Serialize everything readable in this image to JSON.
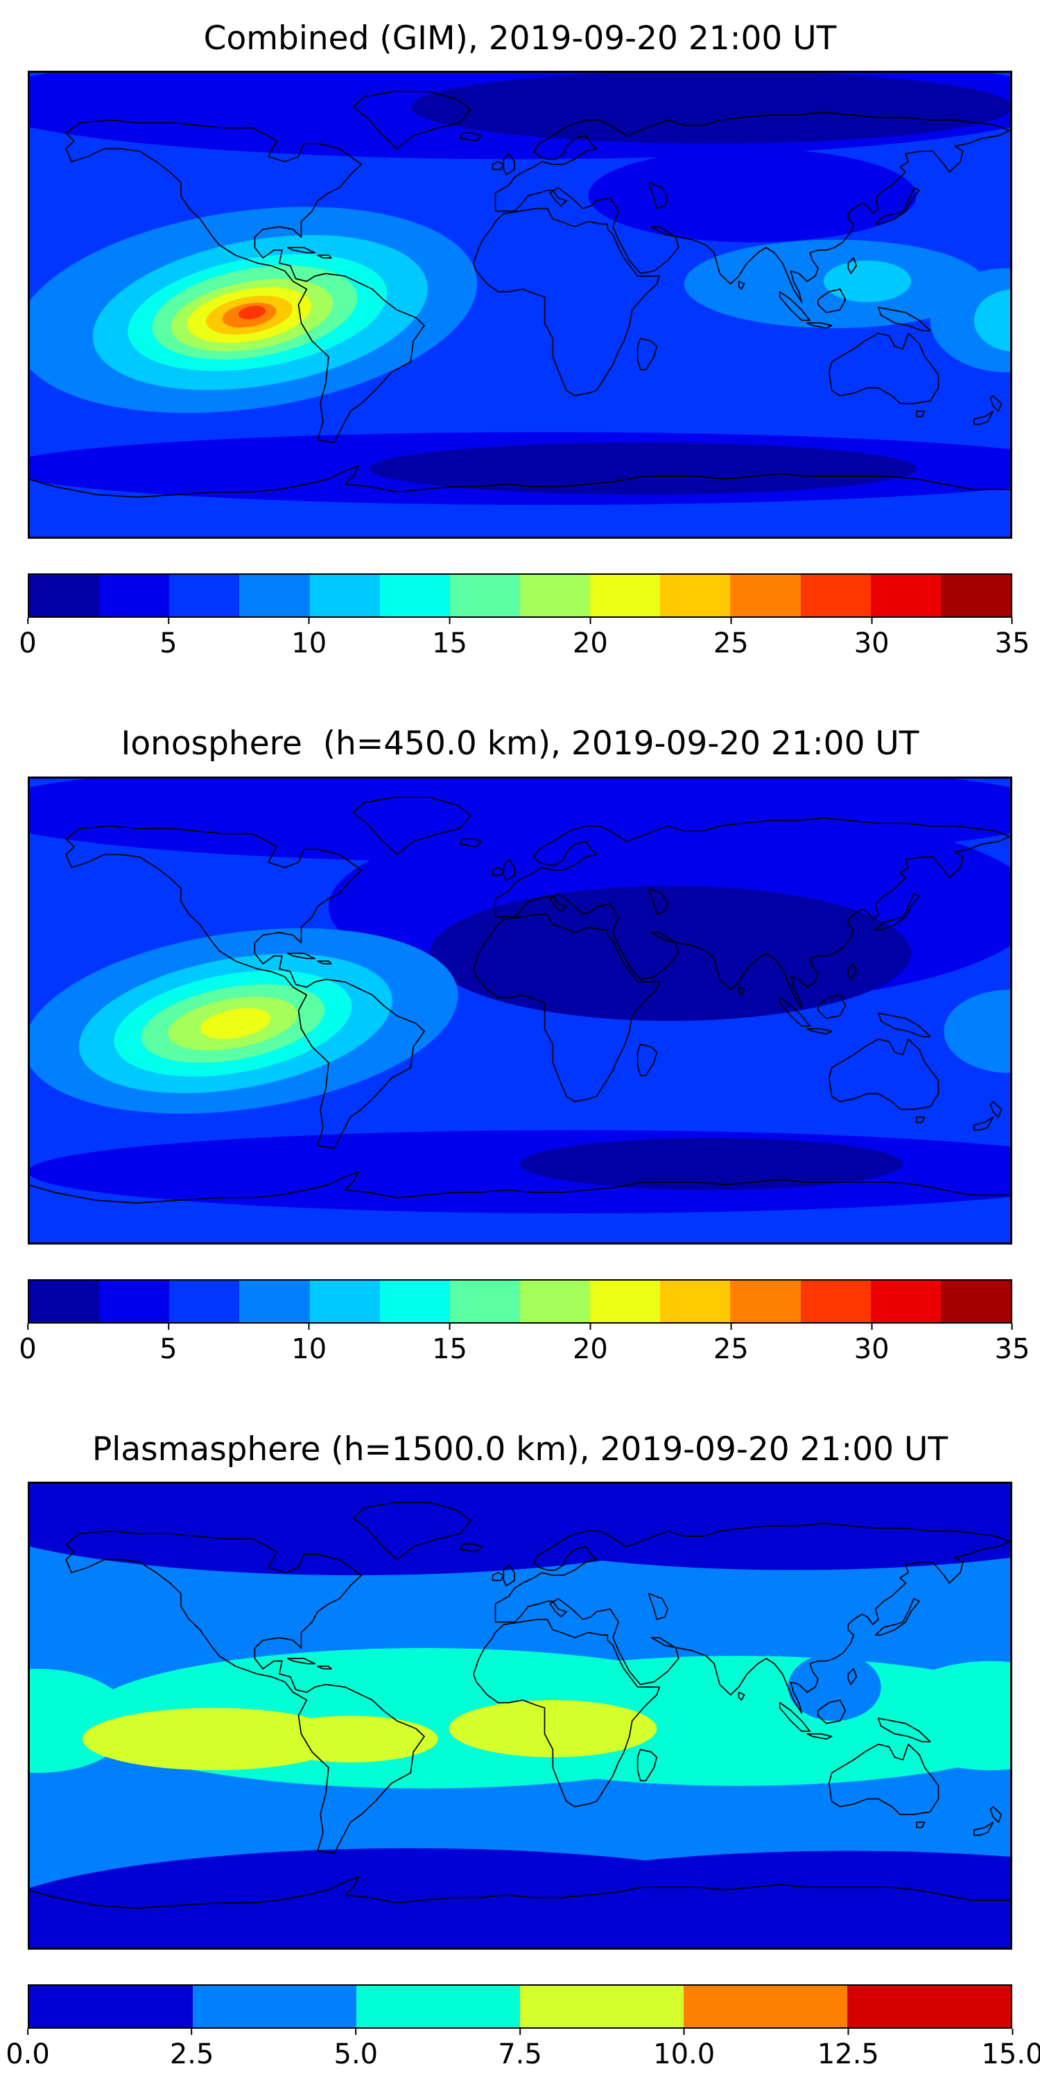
{
  "figure": {
    "panels": [
      {
        "id": "combined-gim",
        "title": "Combined (GIM), 2019-09-20 21:00 UT",
        "colorbar": {
          "min": 0,
          "max": 35,
          "tick_labels": [
            "0",
            "5",
            "10",
            "15",
            "20",
            "25",
            "30",
            "35"
          ],
          "colors": [
            "#0000a4",
            "#0000ed",
            "#0036ff",
            "#0080ff",
            "#00c9ff",
            "#00ffed",
            "#5bffa4",
            "#a4ff5b",
            "#edff12",
            "#ffc900",
            "#ff8000",
            "#ff3600",
            "#ed0000",
            "#a40000"
          ]
        }
      },
      {
        "id": "ionosphere",
        "title": "Ionosphere  (h=450.0 km), 2019-09-20 21:00 UT",
        "colorbar": {
          "min": 0,
          "max": 35,
          "tick_labels": [
            "0",
            "5",
            "10",
            "15",
            "20",
            "25",
            "30",
            "35"
          ],
          "colors": [
            "#0000a4",
            "#0000ed",
            "#0036ff",
            "#0080ff",
            "#00c9ff",
            "#00ffed",
            "#5bffa4",
            "#a4ff5b",
            "#edff12",
            "#ffc900",
            "#ff8000",
            "#ff3600",
            "#ed0000",
            "#a40000"
          ]
        }
      },
      {
        "id": "plasmasphere",
        "title": "Plasmasphere (h=1500.0 km), 2019-09-20 21:00 UT",
        "colorbar": {
          "min": 0,
          "max": 15,
          "tick_labels": [
            "0.0",
            "2.5",
            "5.0",
            "7.5",
            "10.0",
            "12.5",
            "15.0"
          ],
          "colors": [
            "#0000d4",
            "#0080ff",
            "#00ffd4",
            "#d4ff2b",
            "#ff8000",
            "#d40000"
          ]
        }
      }
    ]
  },
  "chart_data": [
    {
      "type": "heatmap",
      "title": "Combined (GIM), 2019-09-20 21:00 UT",
      "x_axis": "longitude_deg",
      "x_range": [
        -180,
        180
      ],
      "y_axis": "latitude_deg",
      "y_range": [
        -90,
        90
      ],
      "projection": "equirectangular world map with coastlines",
      "colormap": "jet",
      "value_range": [
        0,
        35
      ],
      "contour_interval": 2.5,
      "colorbar_tick_values": [
        0,
        5,
        10,
        15,
        20,
        25,
        30,
        35
      ],
      "background_value": 6,
      "max_feature": {
        "label": "equatorial anomaly peak over eastern Pacific west of South America",
        "lon": -98,
        "lat": -3,
        "value": 29
      },
      "min_feature": {
        "label": "high-latitude minimum over Arctic / northern Asia",
        "lon": 70,
        "lat": 76,
        "value": 2
      },
      "blob_format": "[lon_deg, lat_deg, rx_deg, ry_deg, value, rotation_deg?]",
      "field_blobs": [
        [
          0,
          78,
          200,
          22,
          4
        ],
        [
          70,
          76,
          110,
          14,
          1
        ],
        [
          85,
          42,
          60,
          18,
          4
        ],
        [
          10,
          -63,
          200,
          14,
          4
        ],
        [
          45,
          -63,
          100,
          10,
          1
        ],
        [
          -100,
          -2,
          85,
          38,
          8.7,
          -8
        ],
        [
          -95,
          -3,
          62,
          28,
          11,
          -10
        ],
        [
          -96,
          -3,
          48,
          21,
          13.5,
          -10
        ],
        [
          -97,
          -3,
          38,
          17,
          16,
          -10
        ],
        [
          -98,
          -4,
          30,
          13,
          18.5,
          -10
        ],
        [
          -99,
          -4,
          23,
          10,
          21,
          -10
        ],
        [
          -99,
          -4,
          16,
          7,
          23.5,
          -10
        ],
        [
          -99,
          -4,
          10,
          4.5,
          26,
          -10
        ],
        [
          -98,
          -3,
          5,
          2.5,
          28.5,
          -10
        ],
        [
          115,
          8,
          55,
          17,
          8.7
        ],
        [
          127,
          9,
          16,
          8,
          11
        ],
        [
          178,
          -6,
          28,
          20,
          8.7
        ],
        [
          181,
          -6,
          15,
          12,
          11
        ]
      ]
    },
    {
      "type": "heatmap",
      "title": "Ionosphere  (h=450.0 km), 2019-09-20 21:00 UT",
      "x_axis": "longitude_deg",
      "x_range": [
        -180,
        180
      ],
      "y_axis": "latitude_deg",
      "y_range": [
        -90,
        90
      ],
      "projection": "equirectangular world map with coastlines",
      "colormap": "jet",
      "value_range": [
        0,
        35
      ],
      "contour_interval": 2.5,
      "colorbar_tick_values": [
        0,
        5,
        10,
        15,
        20,
        25,
        30,
        35
      ],
      "background_value": 6,
      "max_feature": {
        "label": "equatorial anomaly peak over eastern Pacific west of South America",
        "lon": -104,
        "lat": -5,
        "value": 21
      },
      "min_feature": {
        "label": "broad nightside minimum over Africa and Asia",
        "lon": 55,
        "lat": 22,
        "value": 2
      },
      "blob_format": "[lon_deg, lat_deg, rx_deg, ry_deg, value, rotation_deg?]",
      "field_blobs": [
        [
          0,
          77,
          200,
          20,
          4
        ],
        [
          60,
          40,
          130,
          38,
          4
        ],
        [
          55,
          22,
          88,
          26,
          1
        ],
        [
          20,
          -62,
          200,
          16,
          4
        ],
        [
          70,
          -59,
          70,
          10,
          1
        ],
        [
          -102,
          -4,
          80,
          34,
          8.7,
          -8
        ],
        [
          -104,
          -5,
          58,
          25,
          11,
          -10
        ],
        [
          -105,
          -5,
          44,
          19,
          13.5,
          -10
        ],
        [
          -105,
          -5,
          34,
          14,
          16,
          -10
        ],
        [
          -105,
          -5,
          24,
          9.5,
          18.5,
          -10
        ],
        [
          -104,
          -5,
          13,
          5.5,
          21,
          -10
        ],
        [
          179,
          -8,
          24,
          16,
          8.7
        ]
      ]
    },
    {
      "type": "heatmap",
      "title": "Plasmasphere (h=1500.0 km), 2019-09-20 21:00 UT",
      "x_axis": "longitude_deg",
      "x_range": [
        -180,
        180
      ],
      "y_axis": "latitude_deg",
      "y_range": [
        -90,
        90
      ],
      "projection": "equirectangular world map with coastlines",
      "colormap": "jet",
      "value_range": [
        0,
        15
      ],
      "contour_interval": 2.5,
      "colorbar_tick_values": [
        0,
        2.5,
        5,
        7.5,
        10,
        12.5,
        15
      ],
      "background_value": 3.7,
      "max_feature": {
        "label": "equatorial plasmasphere band maxima over Pacific / South America and Africa",
        "lon": -112,
        "lat": -9,
        "value": 9
      },
      "min_feature": {
        "label": "high-latitude minima (polar caps)",
        "lon": 0,
        "lat": 70,
        "value": 1
      },
      "blob_format": "[lon_deg, lat_deg, rx_deg, ry_deg, value, rotation_deg?]",
      "field_blobs": [
        [
          0,
          87,
          230,
          26,
          1
        ],
        [
          -60,
          82,
          150,
          28,
          1
        ],
        [
          100,
          83,
          140,
          27,
          1
        ],
        [
          0,
          -88,
          230,
          26,
          1
        ],
        [
          -40,
          -81,
          160,
          30,
          1
        ],
        [
          120,
          -80,
          150,
          28,
          1
        ],
        [
          -35,
          -1,
          125,
          27,
          6
        ],
        [
          80,
          -2,
          115,
          25,
          6
        ],
        [
          172,
          0,
          38,
          21,
          6
        ],
        [
          -176,
          -2,
          34,
          20,
          6
        ],
        [
          -112,
          -9,
          48,
          12,
          8.8
        ],
        [
          -62,
          -9,
          32,
          9,
          8.8
        ],
        [
          12,
          -5,
          38,
          11,
          8.8
        ],
        [
          115,
          11,
          17,
          13,
          3.7
        ]
      ]
    }
  ]
}
